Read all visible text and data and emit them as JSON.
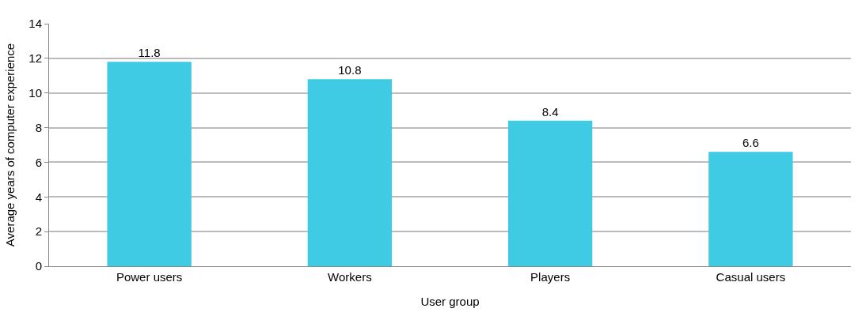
{
  "chart_data": {
    "type": "bar",
    "xlabel": "User group",
    "ylabel": "Average years of computer experience",
    "categories": [
      "Power users",
      "Workers",
      "Players",
      "Casual users"
    ],
    "values": [
      11.8,
      10.8,
      8.4,
      6.6
    ],
    "color": "#3fcbe4",
    "ylim": [
      0,
      14
    ],
    "yticks": [
      0,
      2,
      4,
      6,
      8,
      10,
      12,
      14
    ],
    "grid": "y",
    "data_labels": true
  }
}
